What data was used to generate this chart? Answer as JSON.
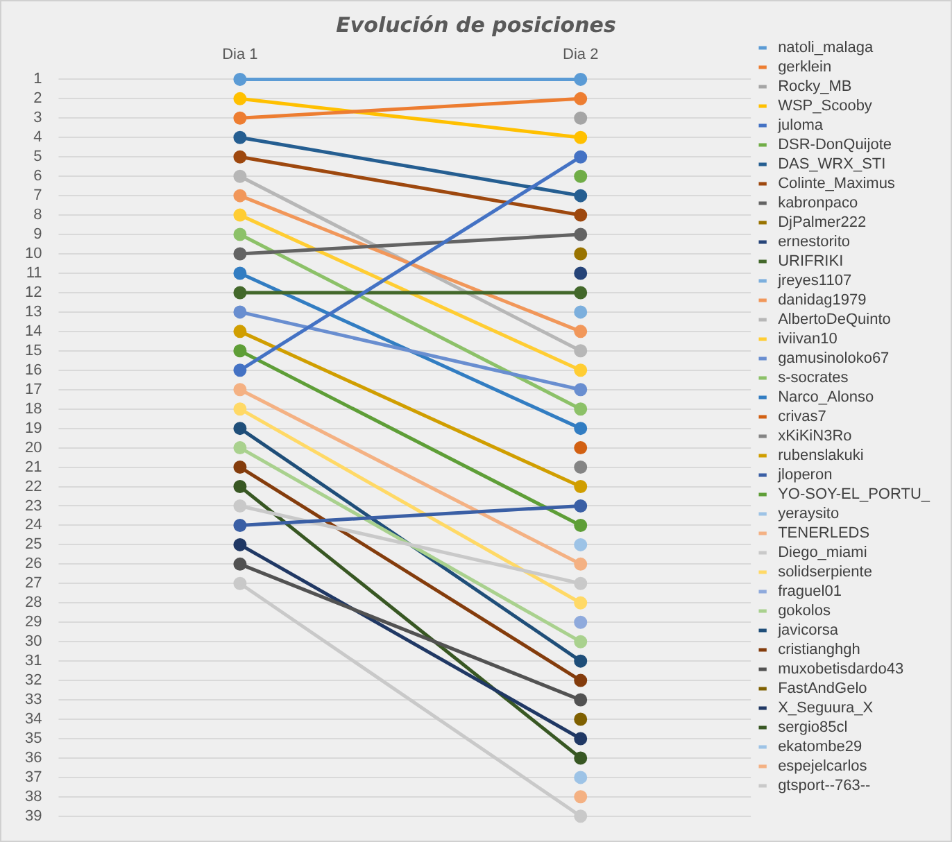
{
  "chart_data": {
    "type": "line",
    "title": "Evolución de posiciones",
    "categories": [
      "Dia 1",
      "Dia 2"
    ],
    "ylim": [
      39,
      1
    ],
    "yticks": [
      1,
      2,
      3,
      4,
      5,
      6,
      7,
      8,
      9,
      10,
      11,
      12,
      13,
      14,
      15,
      16,
      17,
      18,
      19,
      20,
      21,
      22,
      23,
      24,
      25,
      26,
      27,
      28,
      29,
      30,
      31,
      32,
      33,
      34,
      35,
      36,
      37,
      38,
      39
    ],
    "grid": "y",
    "legend": "right",
    "marker": "circle",
    "series": [
      {
        "name": "natoli_malaga",
        "color": "#5b9bd5",
        "values": [
          1,
          1
        ]
      },
      {
        "name": "gerklein",
        "color": "#ed7d31",
        "values": [
          3,
          2
        ]
      },
      {
        "name": "Rocky_MB",
        "color": "#a5a5a5",
        "values": [
          null,
          3
        ]
      },
      {
        "name": "WSP_Scooby",
        "color": "#ffc000",
        "values": [
          2,
          4
        ]
      },
      {
        "name": "juloma",
        "color": "#4472c4",
        "values": [
          16,
          5
        ]
      },
      {
        "name": "DSR-DonQuijote",
        "color": "#70ad47",
        "values": [
          null,
          6
        ]
      },
      {
        "name": "DAS_WRX_STI",
        "color": "#255e91",
        "values": [
          4,
          7
        ]
      },
      {
        "name": "Colinte_Maximus",
        "color": "#9e480e",
        "values": [
          5,
          8
        ]
      },
      {
        "name": "kabronpaco",
        "color": "#636363",
        "values": [
          10,
          9
        ]
      },
      {
        "name": "DjPalmer222",
        "color": "#997300",
        "values": [
          null,
          10
        ]
      },
      {
        "name": "ernestorito",
        "color": "#264478",
        "values": [
          null,
          11
        ]
      },
      {
        "name": "URIFRIKI",
        "color": "#43682b",
        "values": [
          12,
          12
        ]
      },
      {
        "name": "jreyes1107",
        "color": "#7cafdd",
        "values": [
          null,
          13
        ]
      },
      {
        "name": "danidag1979",
        "color": "#f1975a",
        "values": [
          7,
          14
        ]
      },
      {
        "name": "AlbertoDeQuinto",
        "color": "#b7b7b7",
        "values": [
          6,
          15
        ]
      },
      {
        "name": "iviivan10",
        "color": "#ffcd33",
        "values": [
          8,
          16
        ]
      },
      {
        "name": "gamusinoloko67",
        "color": "#698ed0",
        "values": [
          13,
          17
        ]
      },
      {
        "name": "s-socrates",
        "color": "#8cc168",
        "values": [
          9,
          18
        ]
      },
      {
        "name": "Narco_Alonso",
        "color": "#327dc2",
        "values": [
          11,
          19
        ]
      },
      {
        "name": "crivas7",
        "color": "#d26012",
        "values": [
          null,
          20
        ]
      },
      {
        "name": "xKiKiN3Ro",
        "color": "#848484",
        "values": [
          null,
          21
        ]
      },
      {
        "name": "rubenslakuki",
        "color": "#d09e00",
        "values": [
          14,
          22
        ]
      },
      {
        "name": "jloperon",
        "color": "#3a5fa5",
        "values": [
          24,
          23
        ]
      },
      {
        "name": "YO-SOY-EL_PORTU_",
        "color": "#5e9e37",
        "values": [
          15,
          24
        ]
      },
      {
        "name": "yeraysito",
        "color": "#9dc3e6",
        "values": [
          null,
          25
        ]
      },
      {
        "name": "TENERLEDS",
        "color": "#f4b183",
        "values": [
          17,
          26
        ]
      },
      {
        "name": "Diego_miami",
        "color": "#c9c9c9",
        "values": [
          23,
          27
        ]
      },
      {
        "name": "solidserpiente",
        "color": "#ffd966",
        "values": [
          18,
          28
        ]
      },
      {
        "name": "fraguel01",
        "color": "#8faadc",
        "values": [
          null,
          29
        ]
      },
      {
        "name": "gokolos",
        "color": "#a9d18e",
        "values": [
          20,
          30
        ]
      },
      {
        "name": "javicorsa",
        "color": "#1f4e79",
        "values": [
          19,
          31
        ]
      },
      {
        "name": "cristianghgh",
        "color": "#843c0c",
        "values": [
          21,
          32
        ]
      },
      {
        "name": "muxobetisdardo43",
        "color": "#525252",
        "values": [
          26,
          33
        ]
      },
      {
        "name": "FastAndGelo",
        "color": "#7f6000",
        "values": [
          null,
          34
        ]
      },
      {
        "name": "X_Seguura_X",
        "color": "#203864",
        "values": [
          25,
          35
        ]
      },
      {
        "name": "sergio85cl",
        "color": "#385723",
        "values": [
          22,
          36
        ]
      },
      {
        "name": "ekatombe29",
        "color": "#9dc3e6",
        "values": [
          null,
          37
        ]
      },
      {
        "name": "espejelcarlos",
        "color": "#f4b183",
        "values": [
          null,
          38
        ]
      },
      {
        "name": "gtsport--763--",
        "color": "#c9c9c9",
        "values": [
          27,
          39
        ]
      }
    ]
  }
}
